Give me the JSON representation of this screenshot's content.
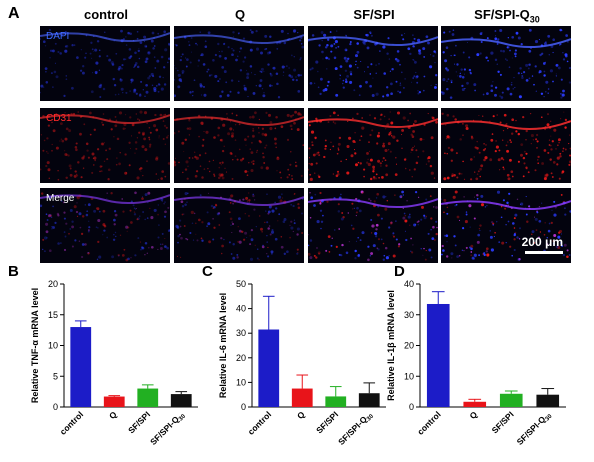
{
  "figure": {
    "panel_A": "A",
    "columns": [
      "control",
      "Q",
      "SF/SPI",
      "SF/SPI-Q"
    ],
    "last_column_subscript": "30",
    "rows": [
      {
        "label": "DAPI",
        "color": "#3f6bff"
      },
      {
        "label": "CD31",
        "color": "#ff2a2a"
      },
      {
        "label": "Merge",
        "color": "#ffffff"
      }
    ],
    "scale_bar": "200 μm"
  },
  "chart_data": [
    {
      "panel": "B",
      "type": "bar",
      "categories": [
        "control",
        "Q",
        "SF/SPI",
        "SF/SPI-Q30"
      ],
      "values": [
        13.0,
        1.7,
        3.0,
        2.1
      ],
      "errors": [
        1.0,
        0.15,
        0.6,
        0.4
      ],
      "colors": [
        "#1c1cc8",
        "#e8141a",
        "#22b022",
        "#111111"
      ],
      "ylabel": "Relative TNF-α mRNA level",
      "ylim": [
        0,
        20
      ],
      "yticks": [
        0,
        5,
        10,
        15,
        20
      ]
    },
    {
      "panel": "C",
      "type": "bar",
      "categories": [
        "control",
        "Q",
        "SF/SPI",
        "SF/SPI-Q30"
      ],
      "values": [
        31.5,
        7.5,
        4.3,
        5.6
      ],
      "errors": [
        13.5,
        5.5,
        4.0,
        4.2
      ],
      "colors": [
        "#1c1cc8",
        "#e8141a",
        "#22b022",
        "#111111"
      ],
      "ylabel": "Relative IL-6 mRNA level",
      "ylim": [
        0,
        50
      ],
      "yticks": [
        0,
        10,
        20,
        30,
        40,
        50
      ]
    },
    {
      "panel": "D",
      "type": "bar",
      "categories": [
        "control",
        "Q",
        "SF/SPI",
        "SF/SPI-Q30"
      ],
      "values": [
        33.5,
        1.7,
        4.3,
        4.0
      ],
      "errors": [
        4.0,
        0.8,
        0.9,
        2.0
      ],
      "colors": [
        "#1c1cc8",
        "#e8141a",
        "#22b022",
        "#111111"
      ],
      "ylabel": "Relative IL-1β mRNA level",
      "ylim": [
        0,
        40
      ],
      "yticks": [
        0,
        10,
        20,
        30,
        40
      ]
    }
  ]
}
